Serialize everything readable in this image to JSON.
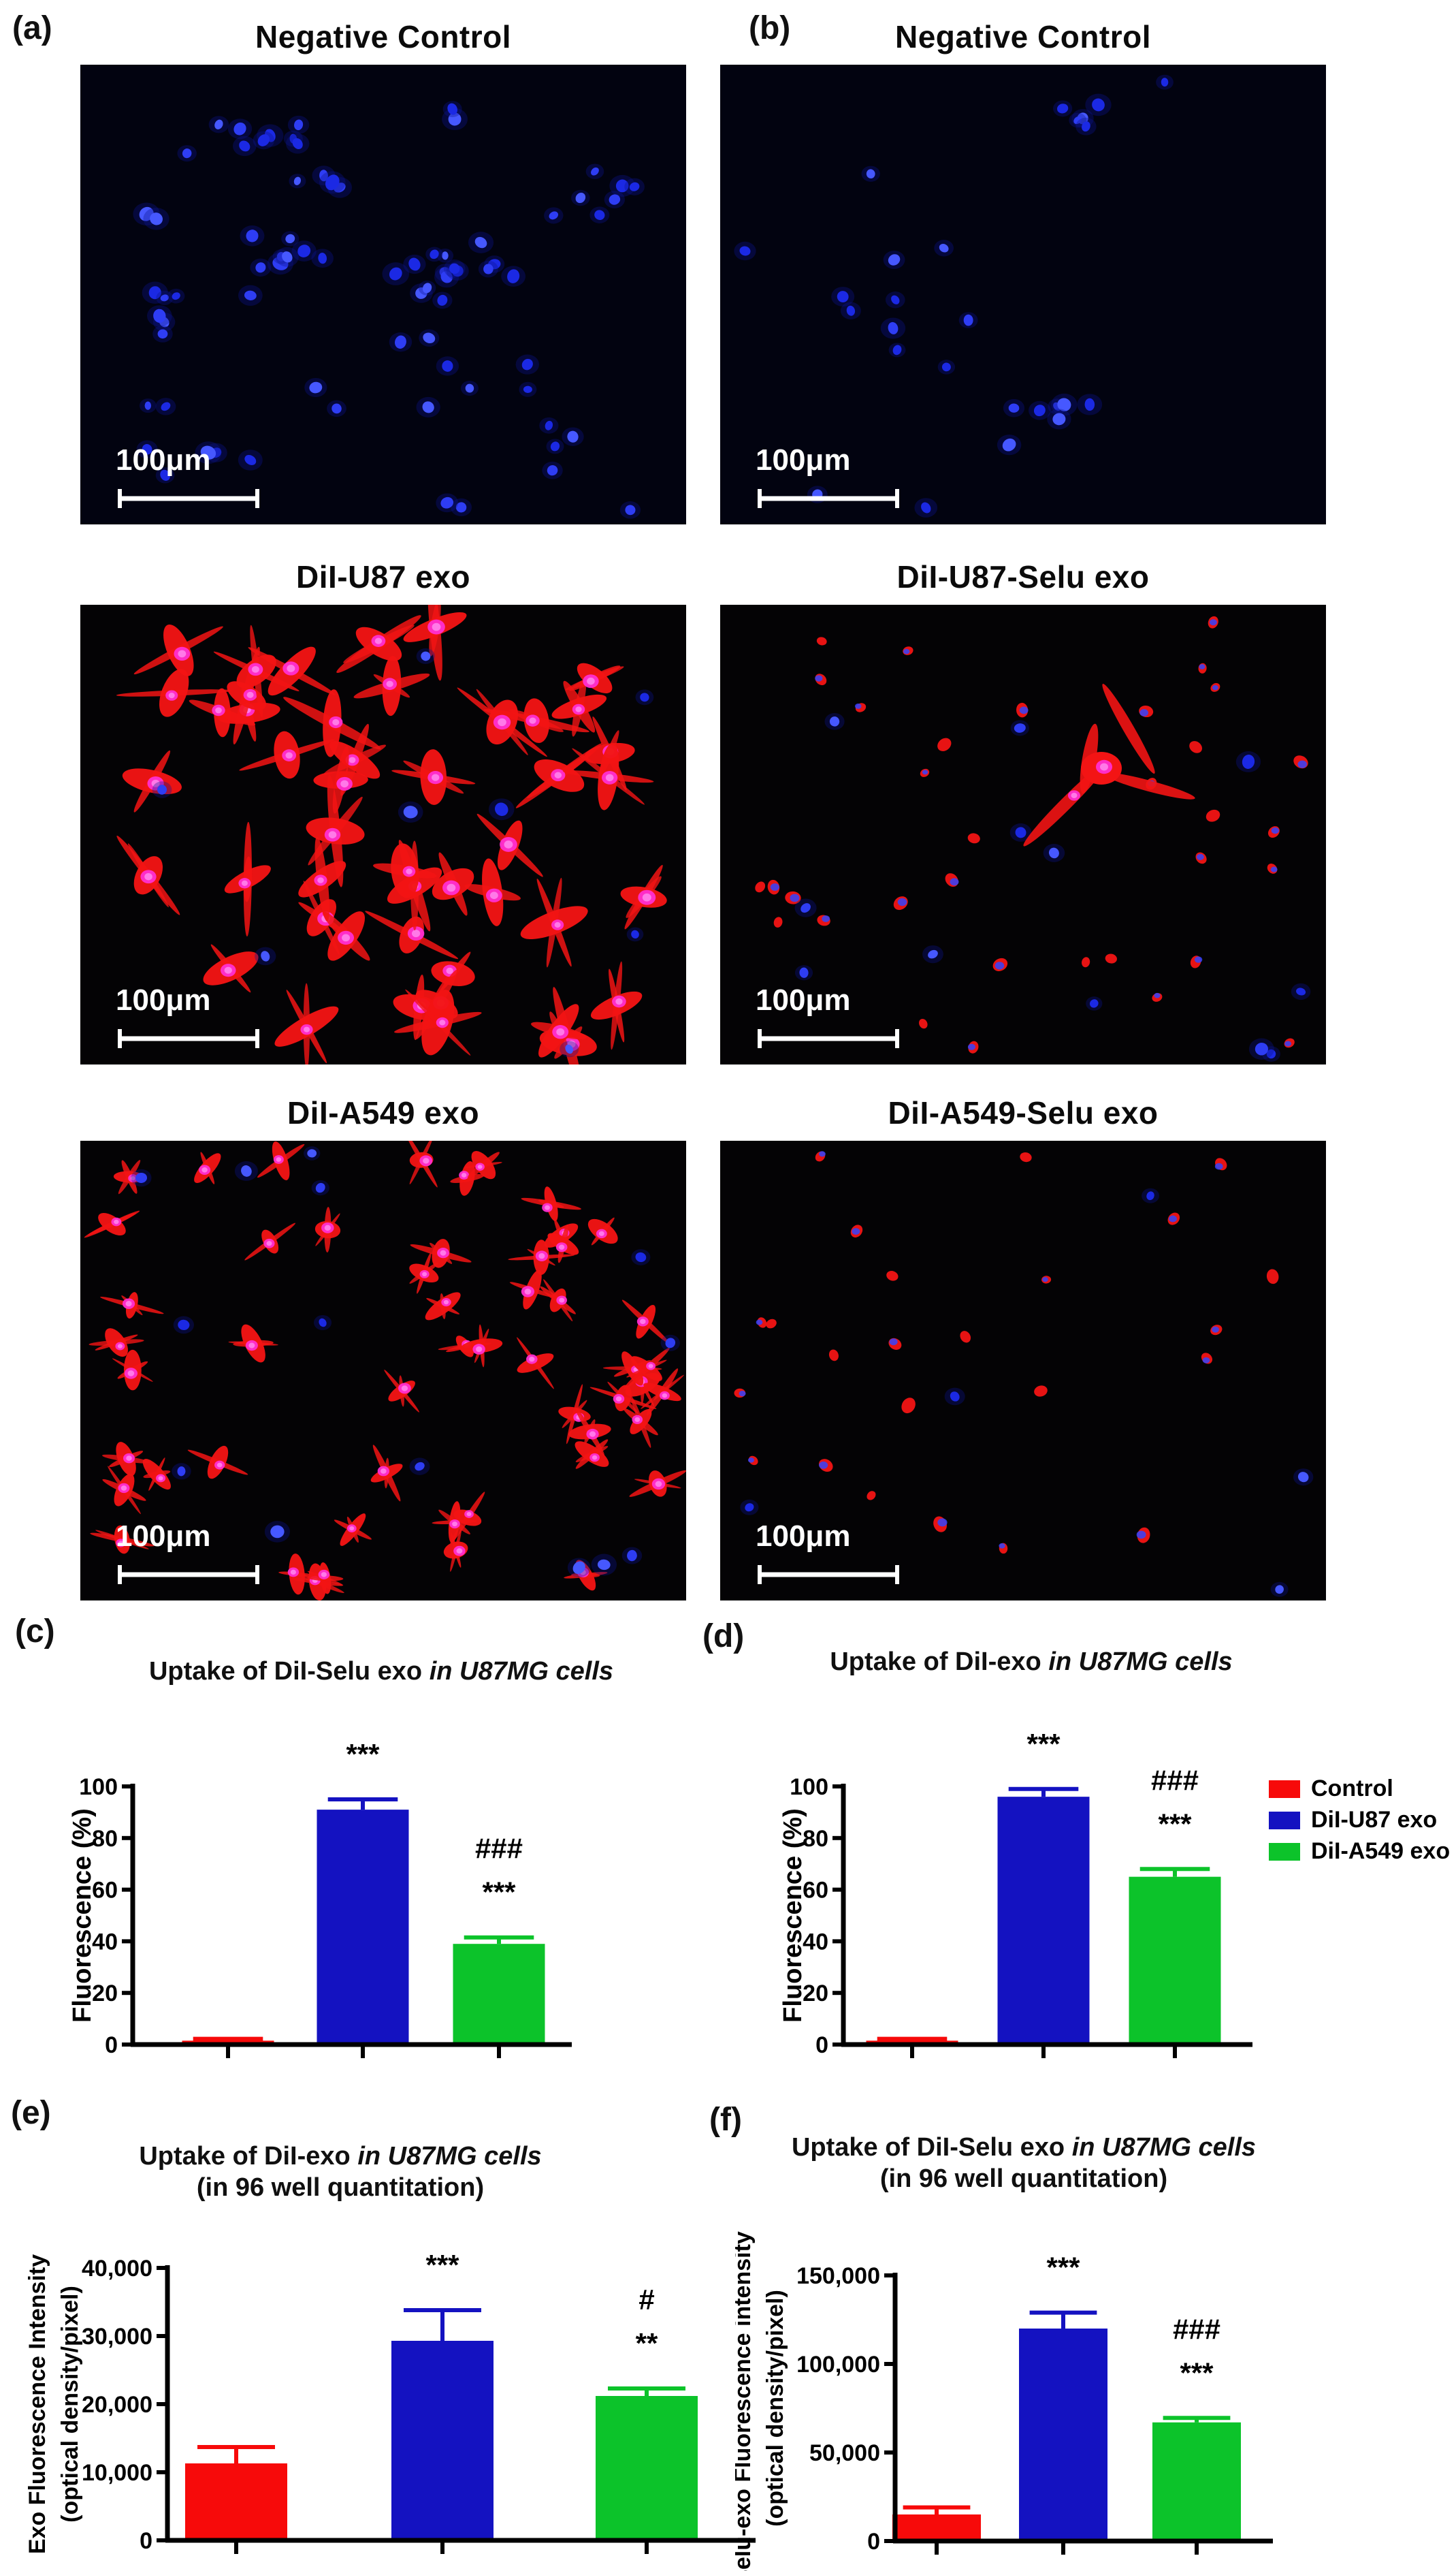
{
  "figure": {
    "panel_letters": {
      "a": "(a)",
      "b": "(b)",
      "c": "(c)",
      "d": "(d)",
      "e": "(e)",
      "f": "(f)"
    }
  },
  "colors": {
    "control": "#f70a0a",
    "u87": "#1412c1",
    "a549": "#0cc32a",
    "cell_red": "#f31414",
    "nucleus_magenta": "#ff2ed2",
    "image_bg_row1": "#020310",
    "image_bg": "#040305",
    "scalebar": "#ffffff"
  },
  "micro_panels": [
    {
      "id": "a1",
      "title": "Negative Control",
      "scale_bar_label": "100μm",
      "visual": {
        "kind": "nuclei",
        "count": 75,
        "blue": 0,
        "seed": 11,
        "feature": false,
        "bg": "image_bg_row1"
      }
    },
    {
      "id": "b1",
      "title": "Negative Control",
      "scale_bar_label": "100μm",
      "visual": {
        "kind": "nuclei",
        "count": 26,
        "blue": 0,
        "seed": 22,
        "feature": false,
        "bg": "image_bg_row1"
      }
    },
    {
      "id": "a2",
      "title": "DiI-U87 exo",
      "scale_bar_label": "100μm",
      "visual": {
        "kind": "cells",
        "count": 46,
        "blue": 8,
        "seed": 33,
        "feature": false,
        "bg": "image_bg"
      }
    },
    {
      "id": "b2",
      "title": "DiI-U87-Selu exo",
      "scale_bar_label": "100μm",
      "visual": {
        "kind": "dots",
        "count": 34,
        "blue": 12,
        "seed": 44,
        "feature": true,
        "bg": "image_bg"
      }
    },
    {
      "id": "a3",
      "title": "DiI-A549 exo",
      "scale_bar_label": "100μm",
      "visual": {
        "kind": "smallcells",
        "count": 52,
        "blue": 14,
        "seed": 55,
        "feature": false,
        "bg": "image_bg"
      }
    },
    {
      "id": "b3",
      "title": "DiI-A549-Selu exo",
      "scale_bar_label": "100μm",
      "visual": {
        "kind": "dots",
        "count": 24,
        "blue": 5,
        "seed": 66,
        "feature": false,
        "bg": "image_bg"
      }
    }
  ],
  "legend": {
    "items": [
      {
        "label": "Control",
        "color_key": "control"
      },
      {
        "label": "DiI-U87 exo",
        "color_key": "u87"
      },
      {
        "label": "DiI-A549 exo",
        "color_key": "a549"
      }
    ]
  },
  "chart_data": [
    {
      "id": "c",
      "panel_letter": "(c)",
      "type": "bar",
      "title_plain": "Uptake of DiI-Selu exo ",
      "title_italic": "in U87MG cells",
      "subtitle_italic": "",
      "ylabel_lines": [
        "Fluorescence (%)"
      ],
      "ylim": [
        0,
        100
      ],
      "ytick_step": 20,
      "ytick_labels": [
        "0",
        "20",
        "40",
        "60",
        "80",
        "100"
      ],
      "categories": [
        "Control",
        "DiI-U87 exo",
        "DiI-A549 exo"
      ],
      "values": [
        1.5,
        91,
        39
      ],
      "errors": [
        0.7,
        4,
        2.5
      ],
      "bar_colors": [
        "control",
        "u87",
        "a549"
      ],
      "sig": [
        [],
        [
          "***"
        ],
        [
          "###",
          "***"
        ]
      ],
      "legend": false,
      "grid": false,
      "x_tick_labels": []
    },
    {
      "id": "d",
      "panel_letter": "(d)",
      "type": "bar",
      "title_plain": "Uptake of DiI-exo ",
      "title_italic": "in U87MG cells",
      "subtitle_italic": "",
      "ylabel_lines": [
        "Fluorescence (%)"
      ],
      "ylim": [
        0,
        100
      ],
      "ytick_step": 20,
      "ytick_labels": [
        "0",
        "20",
        "40",
        "60",
        "80",
        "100"
      ],
      "categories": [
        "Control",
        "DiI-U87 exo",
        "DiI-A549 exo"
      ],
      "values": [
        1.5,
        96,
        65
      ],
      "errors": [
        0.7,
        3,
        3
      ],
      "bar_colors": [
        "control",
        "u87",
        "a549"
      ],
      "sig": [
        [],
        [
          "***"
        ],
        [
          "###",
          "***"
        ]
      ],
      "legend": true,
      "grid": false,
      "x_tick_labels": []
    },
    {
      "id": "e",
      "panel_letter": "(e)",
      "type": "bar",
      "title_plain": "Uptake of DiI-exo ",
      "title_italic": "in U87MG cells",
      "subtitle_italic": "(in 96 well quantitation)",
      "ylabel_lines": [
        "Exo Fluorescence Intensity",
        "(optical density/pixel)"
      ],
      "ylim": [
        0,
        40000
      ],
      "ytick_step": 10000,
      "ytick_labels": [
        "0",
        "10,000",
        "20,000",
        "30,000",
        "40,000"
      ],
      "categories": [
        "Control",
        "DiI-U87 exo",
        "DiI-A549 exo"
      ],
      "values": [
        11300,
        29300,
        21200
      ],
      "errors": [
        2400,
        4500,
        1100
      ],
      "bar_colors": [
        "control",
        "u87",
        "a549"
      ],
      "sig": [
        [],
        [
          "***"
        ],
        [
          "#",
          "**"
        ]
      ],
      "legend": false,
      "grid": false,
      "x_tick_labels": []
    },
    {
      "id": "f",
      "panel_letter": "(f)",
      "type": "bar",
      "title_plain": "Uptake of DiI-Selu exo ",
      "title_italic": "in U87MG cells",
      "subtitle_italic": "(in 96 well quantitation)",
      "ylabel_lines": [
        "Selu-exo Fluorescence intensity",
        "(optical density/pixel)"
      ],
      "ylim": [
        0,
        150000
      ],
      "ytick_step": 50000,
      "ytick_labels": [
        "0",
        "50,000",
        "100,000",
        "150,000"
      ],
      "categories": [
        "Control",
        "DiI-U87 exo",
        "DiI-A549 exo"
      ],
      "values": [
        15000,
        120000,
        67000
      ],
      "errors": [
        4000,
        9000,
        2500
      ],
      "bar_colors": [
        "control",
        "u87",
        "a549"
      ],
      "sig": [
        [],
        [
          "***"
        ],
        [
          "###",
          "***"
        ]
      ],
      "legend": false,
      "grid": false,
      "x_tick_labels": []
    }
  ]
}
